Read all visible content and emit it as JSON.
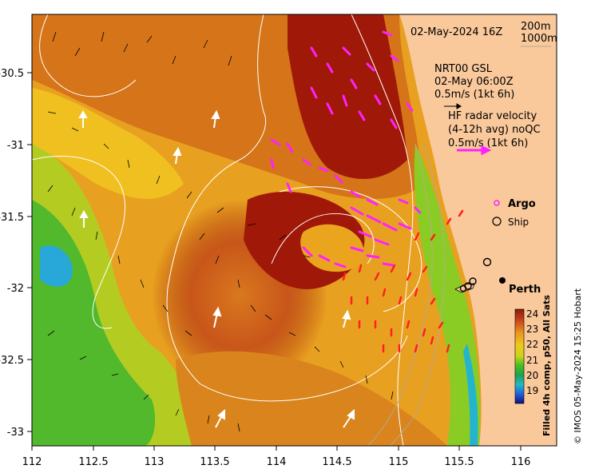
{
  "map": {
    "timestamp": "02-May-2024 16Z",
    "contour_labels": [
      "200m",
      "1000m"
    ],
    "gsl": {
      "title": "NRT00 GSL",
      "time": "02-May 06:00Z",
      "scale": "0.5m/s (1kt 6h)"
    },
    "hf_radar": {
      "title": "HF radar velocity",
      "subtitle": "(4-12h avg) noQC",
      "scale": "0.5m/s (1kt 6h)"
    },
    "legend": {
      "argo": "Argo",
      "ship": "Ship"
    },
    "city": "Perth",
    "colorbar": {
      "title": "Filled 4h comp, p50, All Sats",
      "ticks": [
        "24",
        "23",
        "22",
        "21",
        "20",
        "19"
      ],
      "colors": [
        "#8b1a0a",
        "#c8461a",
        "#d9781e",
        "#e8a020",
        "#f0c81c",
        "#d4d21c",
        "#9ed21c",
        "#40c020",
        "#20a040",
        "#20b0a0",
        "#20a0e0",
        "#2050d0",
        "#101080"
      ]
    },
    "credit": "© IMOS 05-May-2024 15:25 Hobart",
    "x_ticks": [
      "112",
      "112.5",
      "113",
      "113.5",
      "114",
      "114.5",
      "115",
      "115.5",
      "116"
    ],
    "y_ticks": [
      "-30.5",
      "-31",
      "-31.5",
      "-32",
      "-32.5",
      "-33"
    ],
    "colors": {
      "land": "#f9c89b",
      "gsl_arrows": "#ffffff",
      "hf_arrows": "#ff22ff",
      "radar_red": "#ff2020"
    }
  }
}
